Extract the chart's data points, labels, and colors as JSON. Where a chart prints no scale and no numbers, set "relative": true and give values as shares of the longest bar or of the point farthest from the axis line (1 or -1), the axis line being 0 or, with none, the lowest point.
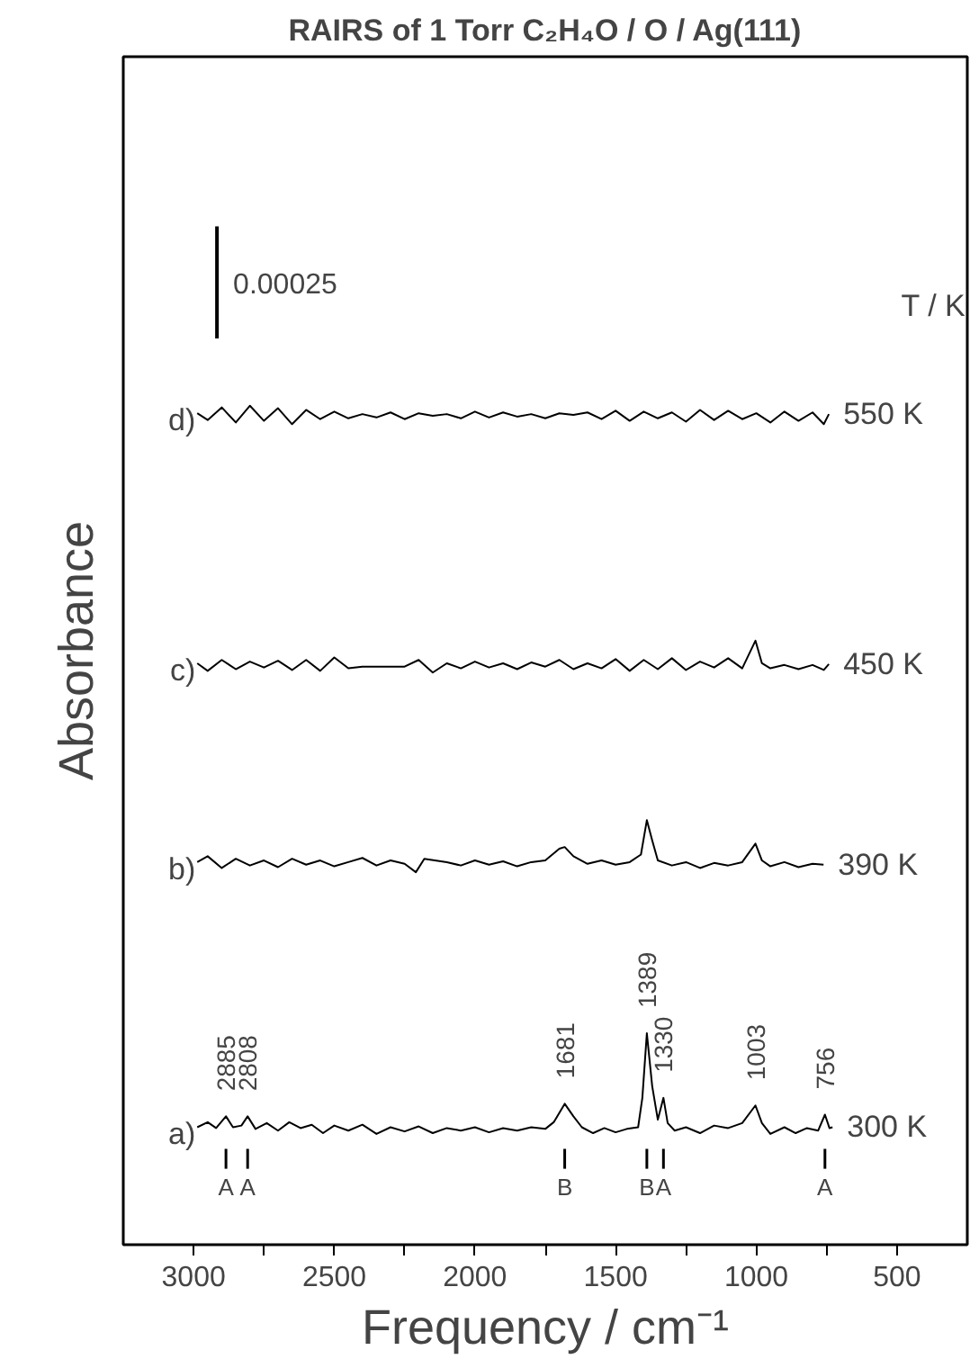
{
  "chart_data": {
    "type": "line",
    "title": "RAIRS of 1 Torr C₂H₄O / O / Ag(111)",
    "xlabel": "Frequency / cm⁻¹",
    "ylabel": "Absorbance",
    "relative": true,
    "xlim": [
      3250,
      250
    ],
    "xticks": [
      3000,
      {
        "value": 2750,
        "label": null
      },
      2500,
      {
        "value": 2250,
        "label": null
      },
      2000,
      {
        "value": 1750,
        "label": null
      },
      1500,
      {
        "value": 1250,
        "label": null
      },
      1000,
      {
        "value": 750,
        "label": null
      },
      500
    ],
    "tick_labels": "x",
    "grid": false,
    "marker": "none",
    "line_style": "solid",
    "series": [
      {
        "name": "300 K",
        "color": "#000000",
        "x": [
          2987,
          2950,
          2920,
          2885,
          2860,
          2830,
          2808,
          2780,
          2740,
          2700,
          2660,
          2620,
          2580,
          2540,
          2500,
          2450,
          2400,
          2350,
          2300,
          2250,
          2200,
          2150,
          2100,
          2050,
          2000,
          1950,
          1900,
          1850,
          1800,
          1750,
          1720,
          1681,
          1650,
          1620,
          1580,
          1540,
          1500,
          1460,
          1420,
          1405,
          1389,
          1370,
          1350,
          1330,
          1315,
          1290,
          1250,
          1200,
          1150,
          1100,
          1050,
          1003,
          980,
          950,
          900,
          860,
          820,
          780,
          756,
          740,
          729
        ],
        "values": [
          0.14,
          0.146,
          0.139,
          0.153,
          0.14,
          0.142,
          0.153,
          0.138,
          0.145,
          0.136,
          0.146,
          0.139,
          0.143,
          0.133,
          0.142,
          0.136,
          0.143,
          0.132,
          0.14,
          0.135,
          0.141,
          0.133,
          0.139,
          0.136,
          0.14,
          0.134,
          0.139,
          0.136,
          0.14,
          0.138,
          0.146,
          0.168,
          0.153,
          0.14,
          0.133,
          0.139,
          0.134,
          0.138,
          0.14,
          0.175,
          0.252,
          0.189,
          0.149,
          0.175,
          0.145,
          0.136,
          0.14,
          0.133,
          0.142,
          0.139,
          0.145,
          0.166,
          0.145,
          0.132,
          0.14,
          0.133,
          0.139,
          0.136,
          0.155,
          0.139,
          0.14
        ]
      },
      {
        "name": "390 K",
        "color": "#000000",
        "x": [
          2987,
          2950,
          2900,
          2850,
          2800,
          2750,
          2700,
          2650,
          2600,
          2550,
          2500,
          2450,
          2400,
          2350,
          2300,
          2250,
          2210,
          2180,
          2100,
          2050,
          2000,
          1950,
          1900,
          1850,
          1800,
          1750,
          1700,
          1681,
          1650,
          1600,
          1550,
          1500,
          1450,
          1410,
          1389,
          1370,
          1350,
          1300,
          1250,
          1200,
          1150,
          1100,
          1050,
          1003,
          980,
          950,
          900,
          850,
          800,
          761
        ],
        "values": [
          0.456,
          0.463,
          0.449,
          0.46,
          0.452,
          0.458,
          0.45,
          0.46,
          0.453,
          0.458,
          0.451,
          0.456,
          0.461,
          0.452,
          0.458,
          0.454,
          0.444,
          0.46,
          0.456,
          0.452,
          0.458,
          0.453,
          0.457,
          0.451,
          0.456,
          0.458,
          0.472,
          0.474,
          0.463,
          0.454,
          0.458,
          0.453,
          0.456,
          0.465,
          0.506,
          0.482,
          0.458,
          0.452,
          0.456,
          0.449,
          0.455,
          0.452,
          0.456,
          0.478,
          0.458,
          0.451,
          0.456,
          0.45,
          0.454,
          0.453
        ]
      },
      {
        "name": "450 K",
        "color": "#000000",
        "x": [
          2987,
          2950,
          2900,
          2850,
          2800,
          2750,
          2700,
          2650,
          2600,
          2550,
          2500,
          2450,
          2400,
          2350,
          2300,
          2250,
          2200,
          2150,
          2100,
          2050,
          2000,
          1950,
          1900,
          1850,
          1800,
          1750,
          1700,
          1650,
          1600,
          1550,
          1500,
          1450,
          1400,
          1350,
          1300,
          1250,
          1200,
          1150,
          1100,
          1050,
          1003,
          980,
          950,
          900,
          850,
          800,
          760,
          742
        ],
        "values": [
          0.693,
          0.684,
          0.697,
          0.686,
          0.695,
          0.688,
          0.696,
          0.685,
          0.697,
          0.684,
          0.7,
          0.687,
          0.689,
          0.689,
          0.689,
          0.689,
          0.697,
          0.682,
          0.693,
          0.687,
          0.695,
          0.688,
          0.693,
          0.686,
          0.694,
          0.689,
          0.697,
          0.686,
          0.693,
          0.687,
          0.698,
          0.684,
          0.697,
          0.686,
          0.699,
          0.685,
          0.695,
          0.688,
          0.699,
          0.687,
          0.72,
          0.693,
          0.687,
          0.691,
          0.686,
          0.691,
          0.685,
          0.692
        ]
      },
      {
        "name": "550 K",
        "color": "#000000",
        "x": [
          2987,
          2950,
          2900,
          2850,
          2800,
          2750,
          2700,
          2650,
          2600,
          2550,
          2500,
          2450,
          2400,
          2350,
          2300,
          2250,
          2200,
          2150,
          2100,
          2050,
          2000,
          1950,
          1900,
          1850,
          1800,
          1750,
          1700,
          1650,
          1600,
          1550,
          1500,
          1450,
          1400,
          1350,
          1300,
          1250,
          1200,
          1150,
          1100,
          1050,
          1000,
          950,
          900,
          850,
          800,
          760,
          742
        ],
        "values": [
          0.991,
          0.983,
          0.998,
          0.98,
          1.0,
          0.982,
          0.997,
          0.978,
          0.995,
          0.984,
          0.993,
          0.985,
          0.99,
          0.986,
          0.992,
          0.984,
          0.991,
          0.988,
          0.99,
          0.985,
          0.993,
          0.986,
          0.992,
          0.987,
          0.99,
          0.985,
          0.991,
          0.989,
          0.992,
          0.984,
          0.994,
          0.982,
          0.993,
          0.985,
          0.992,
          0.981,
          0.995,
          0.983,
          0.994,
          0.984,
          0.991,
          0.98,
          0.993,
          0.982,
          0.992,
          0.978,
          0.99
        ]
      }
    ],
    "annotations": [
      "0.00025",
      "T / K",
      {
        "text": "a)",
        "x": 2987,
        "y": 0.14
      },
      {
        "text": "b)",
        "x": 2987,
        "y": 0.456
      },
      {
        "text": "c)",
        "x": 2987,
        "y": 0.693
      },
      {
        "text": "d)",
        "x": 2987,
        "y": 0.991
      },
      {
        "text": "2885",
        "x": 2885,
        "y": 0.153
      },
      {
        "text": "2808",
        "x": 2808,
        "y": 0.153
      },
      {
        "text": "1681",
        "x": 1681,
        "y": 0.168
      },
      {
        "text": "1389",
        "x": 1389,
        "y": 0.252
      },
      {
        "text": "1330",
        "x": 1330,
        "y": 0.175
      },
      {
        "text": "1003",
        "x": 1003,
        "y": 0.166
      },
      {
        "text": "756",
        "x": 756,
        "y": 0.155
      },
      {
        "text": "A",
        "x": 2885
      },
      {
        "text": "A",
        "x": 2808
      },
      {
        "text": "B",
        "x": 1681
      },
      {
        "text": "B",
        "x": 1389
      },
      {
        "text": "A",
        "x": 1330
      },
      {
        "text": "A",
        "x": 756
      }
    ]
  }
}
